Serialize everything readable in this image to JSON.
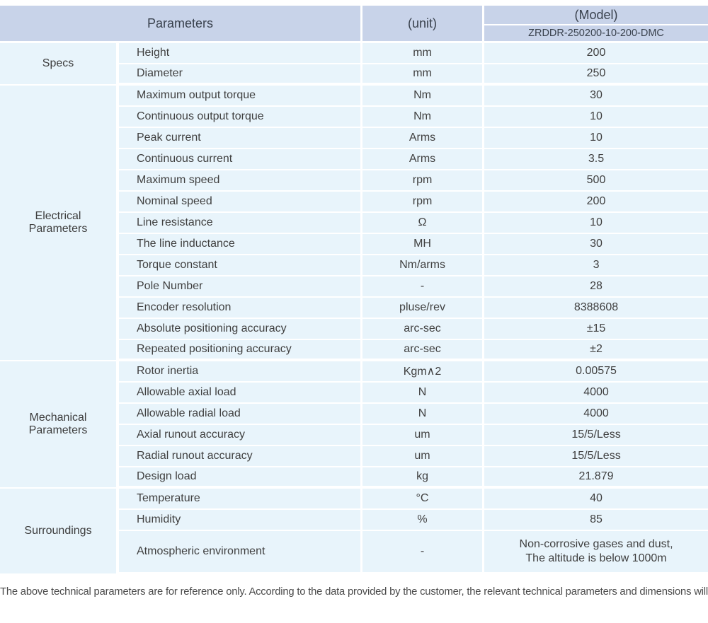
{
  "colors": {
    "header_bg": "#c8d3e9",
    "cell_bg": "#e8f4fb",
    "divider": "#ffffff",
    "cell_text": "#404040",
    "header_text": "#39414d",
    "footer_text": "#4a4a4a"
  },
  "table": {
    "header": {
      "parameters_label": "Parameters",
      "unit_label": "(unit)",
      "model_label": "(Model)",
      "model_value": "ZRDDR-250200-10-200-DMC"
    },
    "sections": [
      {
        "name": "Specs",
        "rows": [
          [
            "Height",
            "mm",
            "200"
          ],
          [
            "Diameter",
            "mm",
            "250"
          ]
        ]
      },
      {
        "name": "Electrical Parameters",
        "rows": [
          [
            "Maximum output torque",
            "Nm",
            "30"
          ],
          [
            "Continuous output torque",
            "Nm",
            "10"
          ],
          [
            "Peak current",
            "Arms",
            "10"
          ],
          [
            "Continuous current",
            "Arms",
            "3.5"
          ],
          [
            "Maximum speed",
            "rpm",
            "500"
          ],
          [
            "Nominal speed",
            "rpm",
            "200"
          ],
          [
            "Line resistance",
            "Ω",
            "10"
          ],
          [
            "The line inductance",
            "MH",
            "30"
          ],
          [
            "Torque constant",
            "Nm/arms",
            "3"
          ],
          [
            "Pole Number",
            "-",
            "28"
          ],
          [
            "Encoder resolution",
            "pluse/rev",
            "8388608"
          ],
          [
            "Absolute positioning accuracy",
            "arc-sec",
            "±15"
          ],
          [
            "Repeated positioning accuracy",
            "arc-sec",
            "±2"
          ]
        ]
      },
      {
        "name": "Mechanical Parameters",
        "rows": [
          [
            "Rotor inertia",
            "Kgm∧2",
            "0.00575"
          ],
          [
            "Allowable axial load",
            "N",
            "4000"
          ],
          [
            "Allowable radial load",
            "N",
            "4000"
          ],
          [
            "Axial runout accuracy",
            "um",
            "15/5/Less"
          ],
          [
            "Radial runout accuracy",
            "um",
            "15/5/Less"
          ],
          [
            "Design load",
            "kg",
            "21.879"
          ]
        ]
      },
      {
        "name": "Surroundings",
        "rows": [
          [
            "Temperature",
            "°C",
            "40"
          ],
          [
            "Humidity",
            "%",
            "85"
          ],
          [
            "Atmospheric environment",
            "-",
            "Non-corrosive gases and dust,\nThe altitude is below 1000m"
          ]
        ]
      }
    ]
  },
  "footer": {
    "note": "The above technical parameters are for reference only. According to the data provided by the customer, the relevant technical parameters and dimensions will be issued."
  }
}
